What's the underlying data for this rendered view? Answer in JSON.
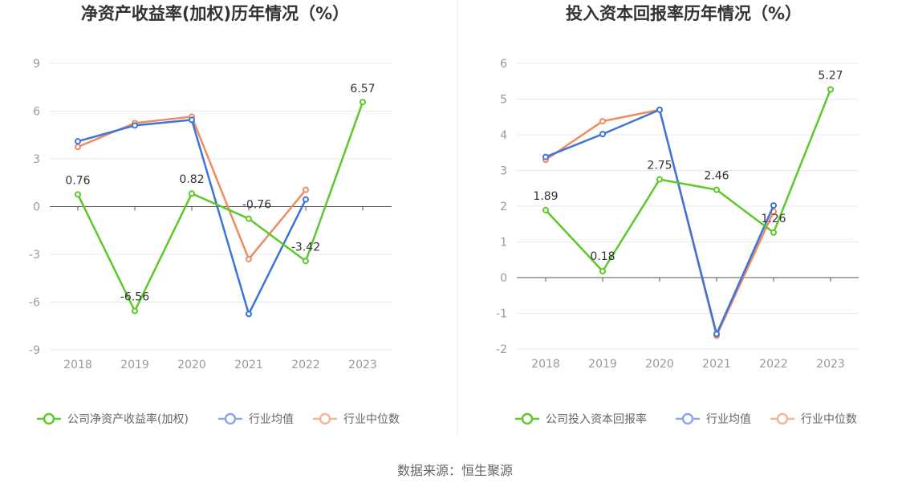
{
  "colors": {
    "company": "#5cc92b",
    "avg": "#3c74db",
    "median": "#ef8b5e",
    "legend_avg": "#88a8e8",
    "legend_median": "#f5b498",
    "grid": "#e6e9f0",
    "axis": "#555555"
  },
  "source_text": "数据来源：恒生聚源",
  "chart_data": [
    {
      "type": "line",
      "title": "净资产收益率(加权)历年情况（%）",
      "categories": [
        "2018",
        "2019",
        "2020",
        "2021",
        "2022",
        "2023"
      ],
      "ylim": [
        -9,
        9
      ],
      "yticks": [
        -9,
        -6,
        -3,
        0,
        3,
        6,
        9
      ],
      "series": [
        {
          "name": "公司净资产收益率(加权)",
          "key": "company",
          "values": [
            0.76,
            -6.56,
            0.82,
            -0.76,
            -3.42,
            6.57
          ],
          "labeled": true
        },
        {
          "name": "行业均值",
          "key": "avg",
          "values": [
            4.1,
            5.1,
            5.45,
            -6.75,
            0.45,
            null
          ],
          "labeled": false
        },
        {
          "name": "行业中位数",
          "key": "median",
          "values": [
            3.75,
            5.25,
            5.65,
            -3.3,
            1.05,
            null
          ],
          "labeled": false
        }
      ],
      "data_labels": [
        "0.76",
        "-6.56",
        "0.82",
        "-0.76",
        "-3.42",
        "6.57"
      ]
    },
    {
      "type": "line",
      "title": "投入资本回报率历年情况（%）",
      "categories": [
        "2018",
        "2019",
        "2020",
        "2021",
        "2022",
        "2023"
      ],
      "ylim": [
        -2,
        6
      ],
      "yticks": [
        -2,
        -1,
        0,
        1,
        2,
        3,
        4,
        5,
        6
      ],
      "series": [
        {
          "name": "公司投入资本回报率",
          "key": "company",
          "values": [
            1.89,
            0.18,
            2.75,
            2.46,
            1.26,
            5.27
          ],
          "labeled": true
        },
        {
          "name": "行业均值",
          "key": "avg",
          "values": [
            3.38,
            4.02,
            4.7,
            -1.58,
            2.02,
            null
          ],
          "labeled": false
        },
        {
          "name": "行业中位数",
          "key": "median",
          "values": [
            3.3,
            4.38,
            4.7,
            -1.63,
            1.85,
            null
          ],
          "labeled": false
        }
      ],
      "data_labels": [
        "1.89",
        "0.18",
        "2.75",
        "2.46",
        "1.26",
        "5.27"
      ]
    }
  ]
}
